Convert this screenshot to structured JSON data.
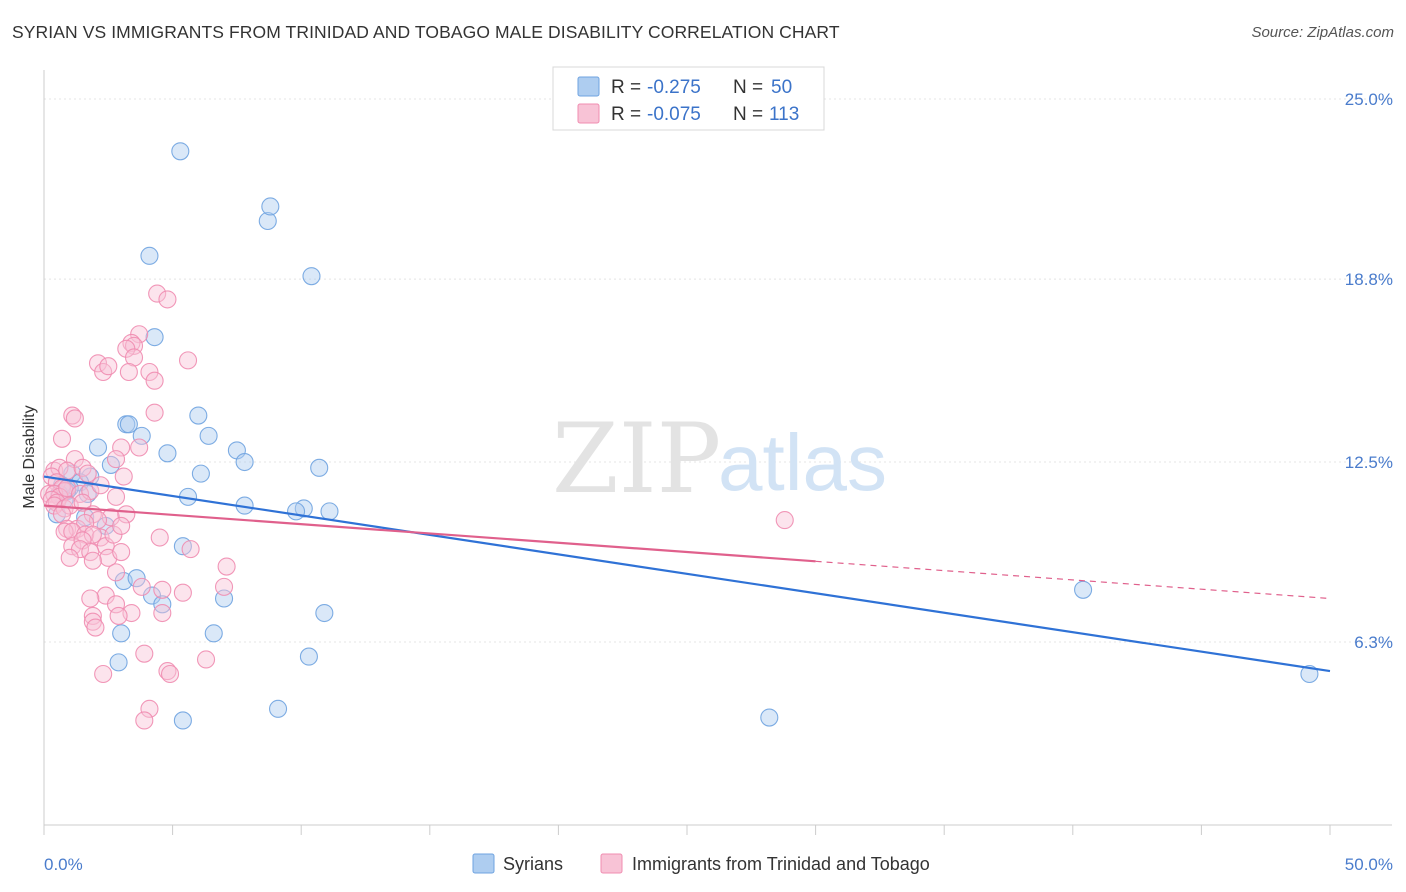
{
  "title": "SYRIAN VS IMMIGRANTS FROM TRINIDAD AND TOBAGO MALE DISABILITY CORRELATION CHART",
  "source": "Source: ZipAtlas.com",
  "watermark": {
    "zip": "ZIP",
    "atlas": "atlas"
  },
  "chart_data": {
    "type": "scatter",
    "title": "SYRIAN VS IMMIGRANTS FROM TRINIDAD AND TOBAGO MALE DISABILITY CORRELATION CHART",
    "xlabel": "",
    "ylabel": "Male Disability",
    "xlim": [
      0,
      50
    ],
    "ylim": [
      0,
      26
    ],
    "x_tick_labels": {
      "min": "0.0%",
      "max": "50.0%"
    },
    "x_ticks": [
      0,
      5,
      10,
      15,
      20,
      25,
      30,
      35,
      40,
      45,
      50
    ],
    "y_ticks": [
      {
        "value": 25.0,
        "label": "25.0%"
      },
      {
        "value": 18.8,
        "label": "18.8%"
      },
      {
        "value": 12.5,
        "label": "12.5%"
      },
      {
        "value": 6.3,
        "label": "6.3%"
      }
    ],
    "grid": true,
    "legend": {
      "position": "top-center",
      "entries": [
        {
          "r_label": "R = ",
          "r_value": "-0.275",
          "n_label": "N = ",
          "n_value": "50"
        },
        {
          "r_label": "R = ",
          "r_value": "-0.075",
          "n_label": "N = ",
          "n_value": "113"
        }
      ]
    },
    "series": [
      {
        "name": "Syrians",
        "color": "#6fa3e0",
        "fill": "#aecdf0",
        "line_color": "#2f72d6",
        "trend": {
          "x": [
            0,
            50
          ],
          "y": [
            12.0,
            5.3
          ],
          "dashed_from": null
        },
        "points": [
          [
            5.3,
            23.2
          ],
          [
            8.7,
            20.8
          ],
          [
            8.8,
            21.3
          ],
          [
            4.1,
            19.6
          ],
          [
            10.4,
            18.9
          ],
          [
            4.3,
            16.8
          ],
          [
            6.0,
            14.1
          ],
          [
            3.2,
            13.8
          ],
          [
            3.3,
            13.8
          ],
          [
            3.8,
            13.4
          ],
          [
            6.4,
            13.4
          ],
          [
            2.1,
            13.0
          ],
          [
            7.5,
            12.9
          ],
          [
            4.8,
            12.8
          ],
          [
            7.8,
            12.5
          ],
          [
            2.6,
            12.4
          ],
          [
            10.7,
            12.3
          ],
          [
            1.8,
            12.0
          ],
          [
            6.1,
            12.1
          ],
          [
            1.1,
            12.1
          ],
          [
            1.4,
            11.8
          ],
          [
            1.0,
            11.6
          ],
          [
            0.9,
            11.5
          ],
          [
            0.6,
            11.4
          ],
          [
            0.7,
            11.7
          ],
          [
            5.6,
            11.3
          ],
          [
            1.7,
            11.4
          ],
          [
            0.8,
            11.2
          ],
          [
            7.8,
            11.0
          ],
          [
            10.1,
            10.9
          ],
          [
            0.5,
            10.7
          ],
          [
            11.1,
            10.8
          ],
          [
            9.8,
            10.8
          ],
          [
            1.6,
            10.6
          ],
          [
            2.4,
            10.3
          ],
          [
            5.4,
            9.6
          ],
          [
            3.1,
            8.4
          ],
          [
            3.6,
            8.5
          ],
          [
            4.2,
            7.9
          ],
          [
            4.6,
            7.6
          ],
          [
            7.0,
            7.8
          ],
          [
            10.9,
            7.3
          ],
          [
            6.6,
            6.6
          ],
          [
            3.0,
            6.6
          ],
          [
            2.9,
            5.6
          ],
          [
            10.3,
            5.8
          ],
          [
            40.4,
            8.1
          ],
          [
            49.2,
            5.2
          ],
          [
            5.4,
            3.6
          ],
          [
            9.1,
            4.0
          ],
          [
            28.2,
            3.7
          ]
        ]
      },
      {
        "name": "Immigrants from Trinidad and Tobago",
        "color": "#f08cb0",
        "fill": "#f8c3d6",
        "line_color": "#e0608c",
        "trend": {
          "x": [
            0,
            50
          ],
          "y": [
            11.0,
            7.8
          ],
          "dashed_from": 30
        },
        "points": [
          [
            4.4,
            18.3
          ],
          [
            4.8,
            18.1
          ],
          [
            3.7,
            16.9
          ],
          [
            3.4,
            16.6
          ],
          [
            3.5,
            16.5
          ],
          [
            3.2,
            16.4
          ],
          [
            3.5,
            16.1
          ],
          [
            2.1,
            15.9
          ],
          [
            2.3,
            15.6
          ],
          [
            2.5,
            15.8
          ],
          [
            5.6,
            16.0
          ],
          [
            3.3,
            15.6
          ],
          [
            4.1,
            15.6
          ],
          [
            4.3,
            15.3
          ],
          [
            1.1,
            14.1
          ],
          [
            1.2,
            14.0
          ],
          [
            4.3,
            14.2
          ],
          [
            3.7,
            13.0
          ],
          [
            3.0,
            13.0
          ],
          [
            0.7,
            13.3
          ],
          [
            1.2,
            12.6
          ],
          [
            0.4,
            12.2
          ],
          [
            0.6,
            12.3
          ],
          [
            0.9,
            12.2
          ],
          [
            1.5,
            12.3
          ],
          [
            2.8,
            12.6
          ],
          [
            1.7,
            12.1
          ],
          [
            3.1,
            12.0
          ],
          [
            0.3,
            12.0
          ],
          [
            0.5,
            11.8
          ],
          [
            0.7,
            11.6
          ],
          [
            0.8,
            11.5
          ],
          [
            0.2,
            11.4
          ],
          [
            0.4,
            11.4
          ],
          [
            0.6,
            11.3
          ],
          [
            0.3,
            11.2
          ],
          [
            0.5,
            11.1
          ],
          [
            0.9,
            11.6
          ],
          [
            1.4,
            11.4
          ],
          [
            1.8,
            11.5
          ],
          [
            2.2,
            11.7
          ],
          [
            0.4,
            11.0
          ],
          [
            0.8,
            10.9
          ],
          [
            1.0,
            11.0
          ],
          [
            1.5,
            11.1
          ],
          [
            2.8,
            11.3
          ],
          [
            0.7,
            10.7
          ],
          [
            1.9,
            10.7
          ],
          [
            2.6,
            10.6
          ],
          [
            0.9,
            10.2
          ],
          [
            1.3,
            10.2
          ],
          [
            2.1,
            10.5
          ],
          [
            1.6,
            10.4
          ],
          [
            0.8,
            10.1
          ],
          [
            1.1,
            10.1
          ],
          [
            1.6,
            10.0
          ],
          [
            2.2,
            9.9
          ],
          [
            3.2,
            10.7
          ],
          [
            1.9,
            10.0
          ],
          [
            1.1,
            9.6
          ],
          [
            1.5,
            9.8
          ],
          [
            2.4,
            9.6
          ],
          [
            2.7,
            10.0
          ],
          [
            3.0,
            10.3
          ],
          [
            4.5,
            9.9
          ],
          [
            1.4,
            9.5
          ],
          [
            1.8,
            9.4
          ],
          [
            2.5,
            9.2
          ],
          [
            3.0,
            9.4
          ],
          [
            5.7,
            9.5
          ],
          [
            1.0,
            9.2
          ],
          [
            1.9,
            9.1
          ],
          [
            7.1,
            8.9
          ],
          [
            2.8,
            8.7
          ],
          [
            3.8,
            8.2
          ],
          [
            7.0,
            8.2
          ],
          [
            4.6,
            8.1
          ],
          [
            5.4,
            8.0
          ],
          [
            2.4,
            7.9
          ],
          [
            1.8,
            7.8
          ],
          [
            2.8,
            7.6
          ],
          [
            3.4,
            7.3
          ],
          [
            2.9,
            7.2
          ],
          [
            1.9,
            7.2
          ],
          [
            1.9,
            7.0
          ],
          [
            4.6,
            7.3
          ],
          [
            2.0,
            6.8
          ],
          [
            3.9,
            5.9
          ],
          [
            6.3,
            5.7
          ],
          [
            4.8,
            5.3
          ],
          [
            2.3,
            5.2
          ],
          [
            4.9,
            5.2
          ],
          [
            4.1,
            4.0
          ],
          [
            3.9,
            3.6
          ],
          [
            28.8,
            10.5
          ]
        ]
      }
    ]
  },
  "bottom_legend": {
    "syrians": "Syrians",
    "trinidad": "Immigrants from Trinidad and Tobago"
  }
}
